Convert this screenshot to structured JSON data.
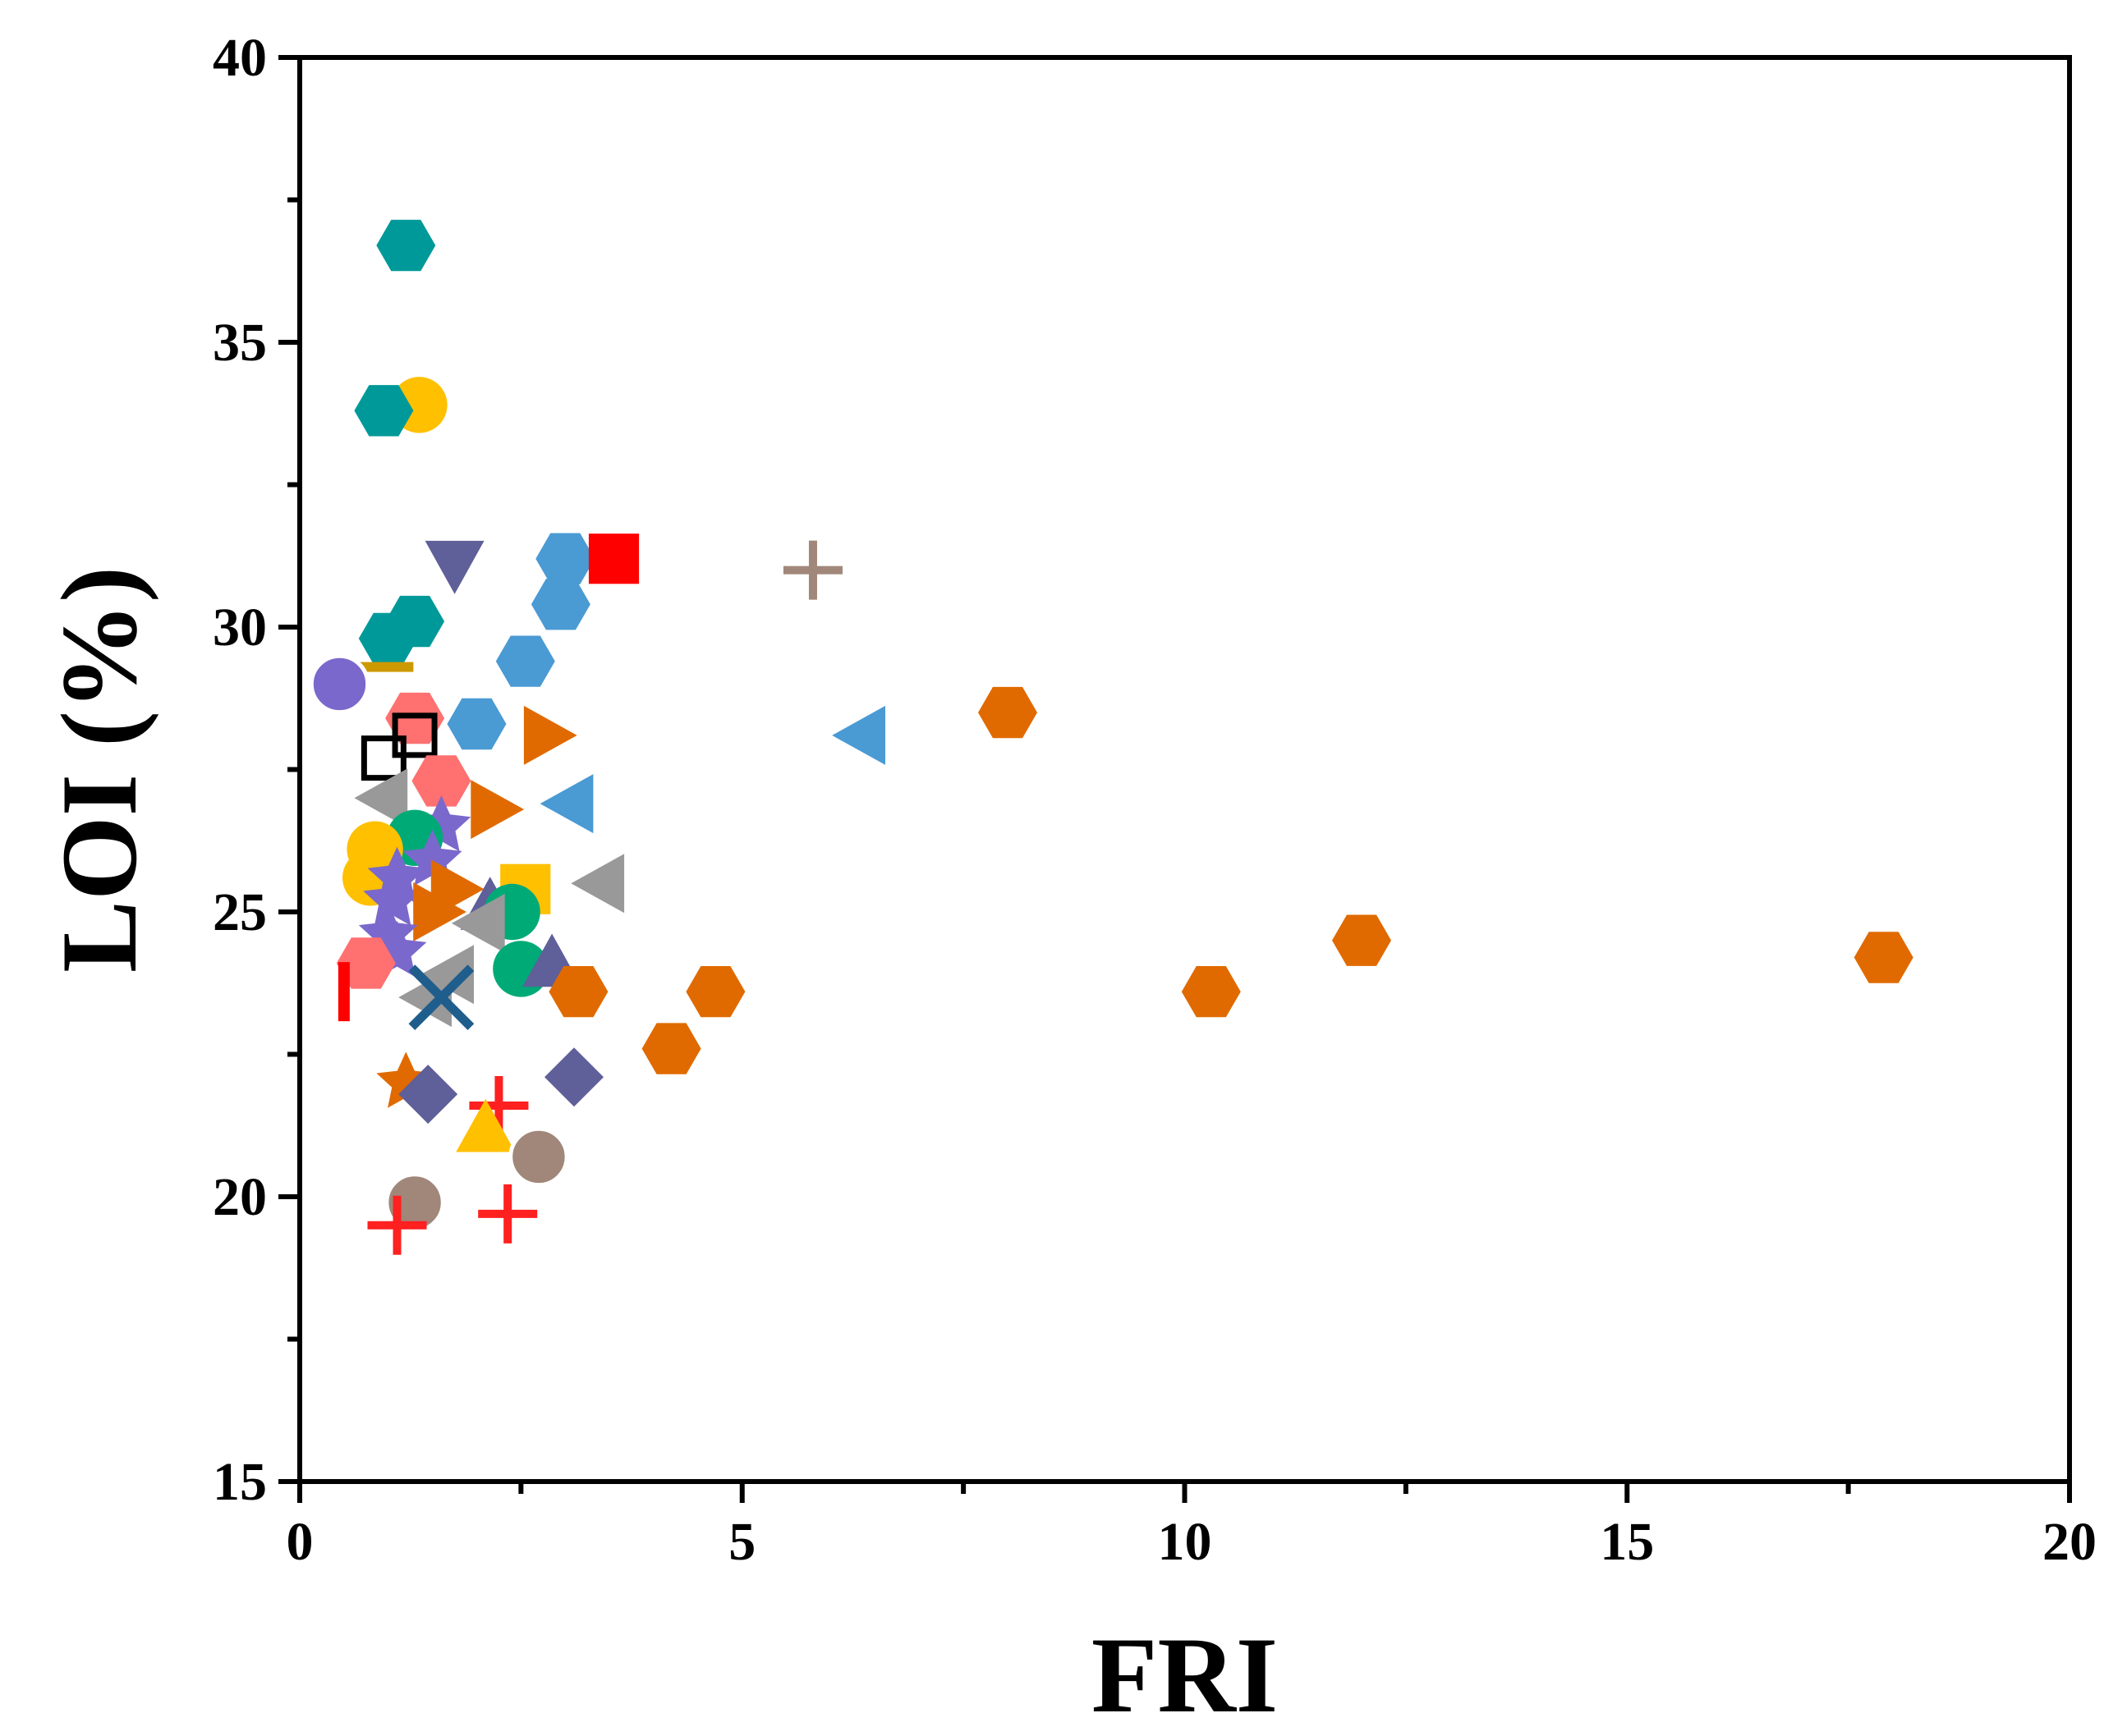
{
  "chart_data": {
    "type": "scatter",
    "title": "",
    "xlabel": "FRI",
    "ylabel": "LOI (%)",
    "xlim": [
      0,
      20
    ],
    "ylim": [
      15,
      40
    ],
    "x_ticks": [
      "0",
      "5",
      "10",
      "15",
      "20"
    ],
    "y_ticks": [
      "15",
      "20",
      "25",
      "30",
      "35",
      "40"
    ],
    "grid": false,
    "legend": "none",
    "points": [
      {
        "x": 1.2,
        "y": 36.7,
        "marker": "hexagon",
        "color": "#009999"
      },
      {
        "x": 1.35,
        "y": 33.9,
        "marker": "circle",
        "color": "#ffc000"
      },
      {
        "x": 0.95,
        "y": 33.8,
        "marker": "hexagon",
        "color": "#009999"
      },
      {
        "x": 1.3,
        "y": 30.1,
        "marker": "hexagon",
        "color": "#009999"
      },
      {
        "x": 1.0,
        "y": 29.8,
        "marker": "hexagon",
        "color": "#009999"
      },
      {
        "x": 0.95,
        "y": 29.3,
        "marker": "dash",
        "color": "#cc9900"
      },
      {
        "x": 0.45,
        "y": 29.0,
        "marker": "ball",
        "color": "#7b68cc"
      },
      {
        "x": 1.75,
        "y": 31.1,
        "marker": "triangle-down",
        "color": "#5f5f99"
      },
      {
        "x": 3.0,
        "y": 31.2,
        "marker": "hexagon",
        "color": "#4a9ad4"
      },
      {
        "x": 3.55,
        "y": 31.2,
        "marker": "square",
        "color": "#ff0000"
      },
      {
        "x": 2.95,
        "y": 30.4,
        "marker": "hexagon",
        "color": "#4a9ad4"
      },
      {
        "x": 2.55,
        "y": 29.4,
        "marker": "hexagon",
        "color": "#4a9ad4"
      },
      {
        "x": 2.0,
        "y": 28.3,
        "marker": "hexagon",
        "color": "#4a9ad4"
      },
      {
        "x": 5.8,
        "y": 31.0,
        "marker": "plus",
        "color": "#a0877a"
      },
      {
        "x": 6.35,
        "y": 28.1,
        "marker": "triangle-left",
        "color": "#4a9ad4"
      },
      {
        "x": 8.0,
        "y": 28.5,
        "marker": "hexagon",
        "color": "#e06a00"
      },
      {
        "x": 1.3,
        "y": 28.4,
        "marker": "hexagon",
        "color": "#ff7070"
      },
      {
        "x": 1.3,
        "y": 28.1,
        "marker": "open-square",
        "color": "#000000"
      },
      {
        "x": 0.95,
        "y": 27.7,
        "marker": "open-square",
        "color": "#000000"
      },
      {
        "x": 2.8,
        "y": 28.1,
        "marker": "triangle-right",
        "color": "#e06a00"
      },
      {
        "x": 1.6,
        "y": 27.3,
        "marker": "hexagon",
        "color": "#ff7070"
      },
      {
        "x": 0.95,
        "y": 27.0,
        "marker": "triangle-left",
        "color": "#999999"
      },
      {
        "x": 3.05,
        "y": 26.9,
        "marker": "triangle-left",
        "color": "#4a9ad4"
      },
      {
        "x": 2.2,
        "y": 26.8,
        "marker": "triangle-right",
        "color": "#e06a00"
      },
      {
        "x": 1.6,
        "y": 26.5,
        "marker": "star",
        "color": "#7b68cc"
      },
      {
        "x": 1.3,
        "y": 26.3,
        "marker": "circle",
        "color": "#00aa77"
      },
      {
        "x": 0.85,
        "y": 26.1,
        "marker": "circle",
        "color": "#ffc000"
      },
      {
        "x": 1.5,
        "y": 25.9,
        "marker": "star",
        "color": "#7b68cc"
      },
      {
        "x": 0.8,
        "y": 25.6,
        "marker": "circle",
        "color": "#ffc000"
      },
      {
        "x": 1.1,
        "y": 25.6,
        "marker": "star",
        "color": "#7b68cc"
      },
      {
        "x": 1.75,
        "y": 25.4,
        "marker": "triangle-right",
        "color": "#e06a00"
      },
      {
        "x": 2.55,
        "y": 25.4,
        "marker": "square",
        "color": "#ffc000"
      },
      {
        "x": 3.4,
        "y": 25.5,
        "marker": "triangle-left",
        "color": "#999999"
      },
      {
        "x": 1.05,
        "y": 25.2,
        "marker": "star",
        "color": "#7b68cc"
      },
      {
        "x": 2.15,
        "y": 25.1,
        "marker": "triangle-up",
        "color": "#5f5f99"
      },
      {
        "x": 2.4,
        "y": 25.0,
        "marker": "circle",
        "color": "#00aa77"
      },
      {
        "x": 1.55,
        "y": 25.0,
        "marker": "triangle-right",
        "color": "#e06a00"
      },
      {
        "x": 2.05,
        "y": 24.8,
        "marker": "triangle-left",
        "color": "#999999"
      },
      {
        "x": 1.0,
        "y": 24.6,
        "marker": "star",
        "color": "#7b68cc"
      },
      {
        "x": 1.1,
        "y": 24.3,
        "marker": "star",
        "color": "#7b68cc"
      },
      {
        "x": 0.75,
        "y": 24.1,
        "marker": "hexagon",
        "color": "#ff7070"
      },
      {
        "x": 2.5,
        "y": 24.0,
        "marker": "circle",
        "color": "#00aa77"
      },
      {
        "x": 2.85,
        "y": 24.1,
        "marker": "triangle-up",
        "color": "#5f5f99"
      },
      {
        "x": 1.7,
        "y": 23.9,
        "marker": "triangle-left",
        "color": "#999999"
      },
      {
        "x": 3.15,
        "y": 23.6,
        "marker": "hexagon",
        "color": "#e06a00"
      },
      {
        "x": 1.45,
        "y": 23.5,
        "marker": "triangle-left",
        "color": "#999999"
      },
      {
        "x": 0.5,
        "y": 23.6,
        "marker": "vbar",
        "color": "#ff0000"
      },
      {
        "x": 1.6,
        "y": 23.5,
        "marker": "x",
        "color": "#1f5e8c"
      },
      {
        "x": 4.7,
        "y": 23.6,
        "marker": "hexagon",
        "color": "#e06a00"
      },
      {
        "x": 4.2,
        "y": 22.6,
        "marker": "hexagon",
        "color": "#e06a00"
      },
      {
        "x": 1.2,
        "y": 22.0,
        "marker": "star",
        "color": "#e06a00"
      },
      {
        "x": 1.45,
        "y": 21.8,
        "marker": "diamond",
        "color": "#5f5f99"
      },
      {
        "x": 3.1,
        "y": 22.1,
        "marker": "diamond",
        "color": "#5f5f99"
      },
      {
        "x": 2.25,
        "y": 21.6,
        "marker": "plus",
        "color": "#ff2020"
      },
      {
        "x": 2.1,
        "y": 21.2,
        "marker": "triangle-up",
        "color": "#ffc000"
      },
      {
        "x": 2.7,
        "y": 20.7,
        "marker": "ball",
        "color": "#a0877a"
      },
      {
        "x": 1.3,
        "y": 19.9,
        "marker": "ball",
        "color": "#a0877a"
      },
      {
        "x": 2.35,
        "y": 19.7,
        "marker": "plus",
        "color": "#ff2020"
      },
      {
        "x": 1.1,
        "y": 19.5,
        "marker": "plus",
        "color": "#ff2020"
      },
      {
        "x": 10.3,
        "y": 23.6,
        "marker": "hexagon",
        "color": "#e06a00"
      },
      {
        "x": 12.0,
        "y": 24.5,
        "marker": "hexagon",
        "color": "#e06a00"
      },
      {
        "x": 17.9,
        "y": 24.2,
        "marker": "hexagon",
        "color": "#e06a00"
      }
    ]
  }
}
